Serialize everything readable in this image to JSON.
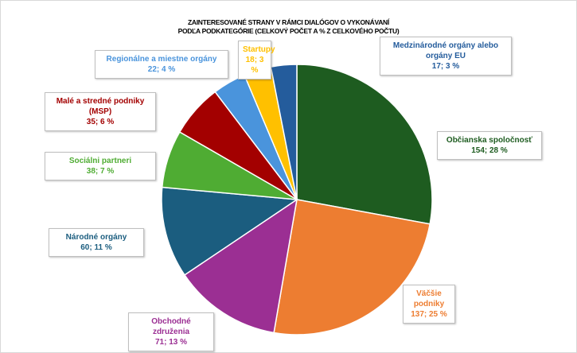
{
  "chart_data": {
    "type": "pie",
    "title": [
      "ZAINTERESOVANÉ STRANY V RÁMCI DIALÓGOV O VYKONÁVANÍ",
      "PODĽA PODKATEGÓRIE (CELKOVÝ POČET A % Z CELKOVÉHO POČTU)"
    ],
    "categories": [
      "Občianska spoločnosť",
      "Väčšie podniky",
      "Obchodné združenia",
      "Národné orgány",
      "Sociálni partneri",
      "Malé a stredné podniky (MSP)",
      "Regionálne a miestne orgány",
      "Startupy",
      "Medzinárodné orgány alebo orgány EU"
    ],
    "values": [
      154,
      137,
      71,
      60,
      38,
      35,
      22,
      18,
      17
    ],
    "value_labels": [
      "154; 28 %",
      "137; 25 %",
      "71; 13 %",
      "60; 11 %",
      "38; 7 %",
      "35; 6 %",
      "22; 4 %",
      "18; 3 %",
      "17; 3 %"
    ],
    "colors": [
      "#1e5c20",
      "#ed7d31",
      "#9b2f93",
      "#1b5d7f",
      "#4fac33",
      "#a30000",
      "#4a94dc",
      "#ffc000",
      "#245c9c"
    ]
  }
}
